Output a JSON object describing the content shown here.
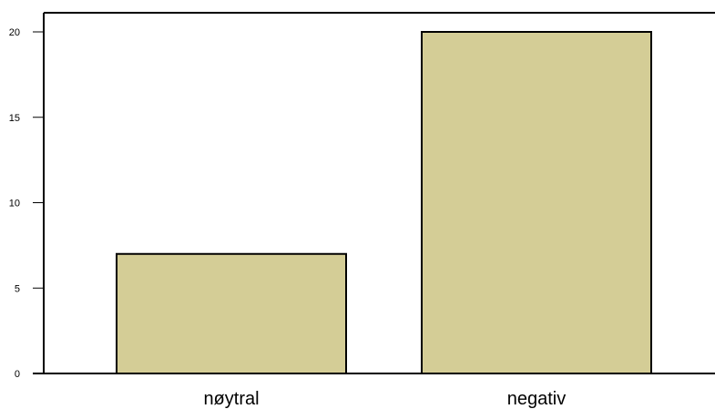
{
  "chart_data": {
    "type": "bar",
    "categories": [
      "nøytral",
      "negativ"
    ],
    "values": [
      7,
      20
    ],
    "ylim": [
      0,
      20
    ],
    "yticks": [
      0,
      5,
      10,
      15,
      20
    ],
    "title": "",
    "xlabel": "",
    "ylabel": "",
    "grid": false,
    "bar_fill": "#d4cd96",
    "bar_stroke": "#000000"
  }
}
